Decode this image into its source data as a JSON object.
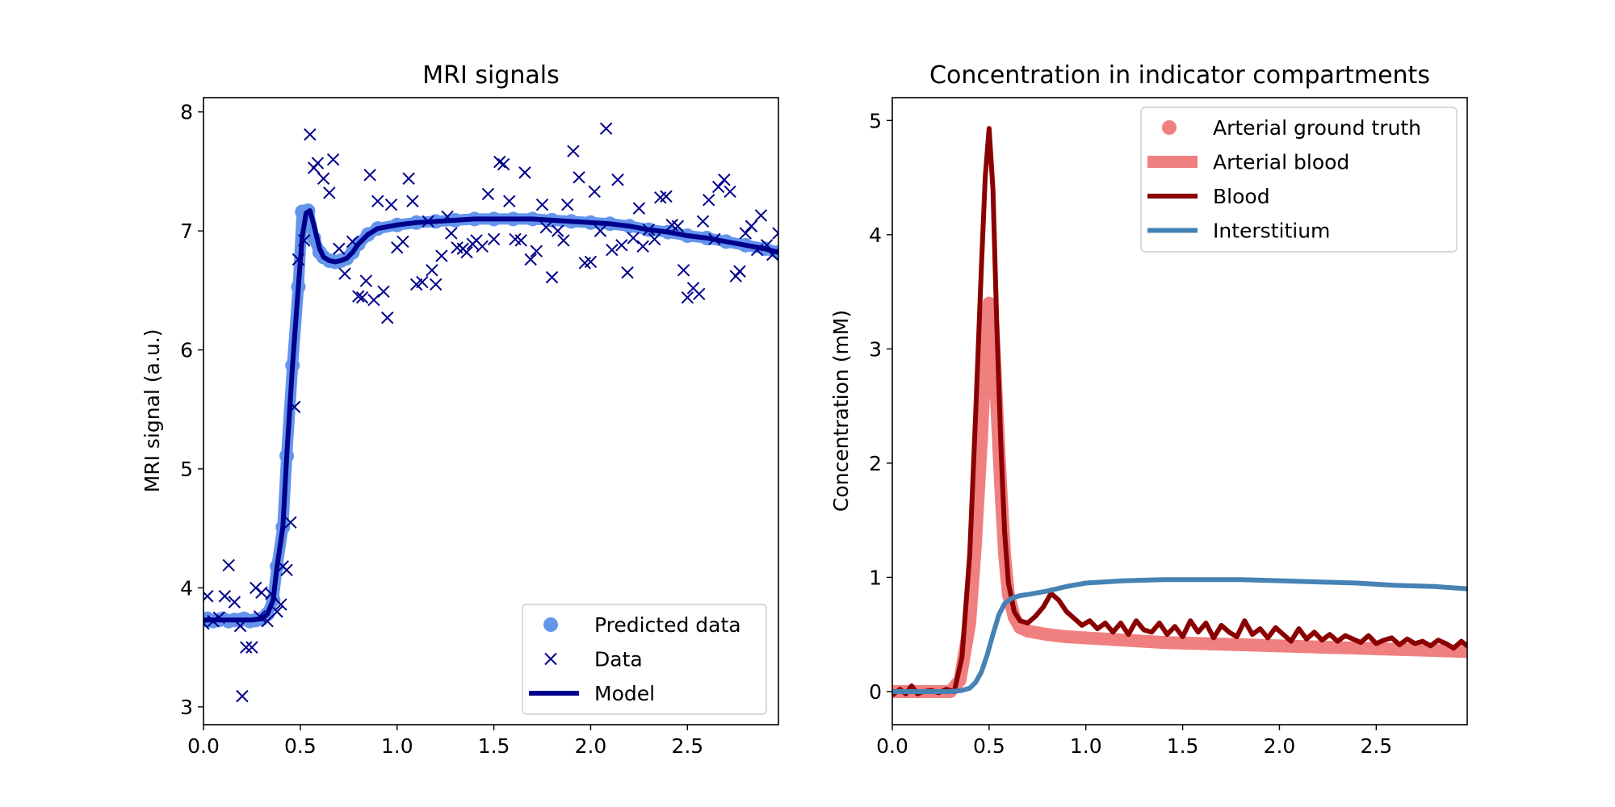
{
  "chart_data": [
    {
      "type": "line",
      "title": "MRI signals",
      "xlabel": "",
      "ylabel": "MRI signal (a.u.)",
      "xlim": [
        0,
        2.97
      ],
      "ylim": [
        2.85,
        8.12
      ],
      "xticks": [
        0.0,
        0.5,
        1.0,
        1.5,
        2.0,
        2.5
      ],
      "xtick_labels": [
        "0.0",
        "0.5",
        "1.0",
        "1.5",
        "2.0",
        "2.5"
      ],
      "yticks": [
        3,
        4,
        5,
        6,
        7,
        8
      ],
      "ytick_labels": [
        "3",
        "4",
        "5",
        "6",
        "7",
        "8"
      ],
      "legend_position": "lower-right",
      "colors": {
        "predicted": "#6495ed",
        "data": "#00008b",
        "model": "#00008b"
      },
      "series": [
        {
          "name": "Predicted data",
          "style": "markers",
          "x": [
            0.0,
            0.02,
            0.05,
            0.08,
            0.1,
            0.13,
            0.16,
            0.19,
            0.21,
            0.24,
            0.27,
            0.3,
            0.33,
            0.36,
            0.38,
            0.41,
            0.43,
            0.46,
            0.49,
            0.51,
            0.54,
            0.57,
            0.6,
            0.62,
            0.65,
            0.68,
            0.71,
            0.74,
            0.77,
            0.8,
            0.85,
            0.9,
            1.0,
            1.1,
            1.2,
            1.3,
            1.4,
            1.5,
            1.6,
            1.7,
            1.8,
            1.9,
            2.0,
            2.1,
            2.2,
            2.3,
            2.4,
            2.5,
            2.6,
            2.7,
            2.8,
            2.9,
            2.97
          ],
          "y": [
            3.73,
            3.74,
            3.72,
            3.73,
            3.74,
            3.72,
            3.73,
            3.73,
            3.74,
            3.72,
            3.73,
            3.74,
            3.78,
            3.9,
            4.18,
            4.51,
            5.11,
            5.87,
            6.53,
            7.16,
            7.17,
            6.94,
            6.82,
            6.78,
            6.75,
            6.74,
            6.75,
            6.77,
            6.82,
            6.89,
            6.97,
            7.02,
            7.05,
            7.07,
            7.08,
            7.09,
            7.1,
            7.1,
            7.1,
            7.1,
            7.09,
            7.08,
            7.07,
            7.06,
            7.04,
            7.01,
            6.99,
            6.96,
            6.94,
            6.91,
            6.88,
            6.85,
            6.82
          ]
        },
        {
          "name": "Data",
          "style": "x-markers",
          "x": [
            0.0,
            0.02,
            0.05,
            0.08,
            0.11,
            0.13,
            0.16,
            0.19,
            0.2,
            0.22,
            0.25,
            0.27,
            0.29,
            0.3,
            0.33,
            0.35,
            0.38,
            0.4,
            0.41,
            0.43,
            0.45,
            0.47,
            0.49,
            0.52,
            0.55,
            0.57,
            0.59,
            0.62,
            0.65,
            0.67,
            0.7,
            0.73,
            0.77,
            0.8,
            0.82,
            0.84,
            0.86,
            0.88,
            0.9,
            0.93,
            0.95,
            0.97,
            1.0,
            1.03,
            1.06,
            1.08,
            1.1,
            1.13,
            1.16,
            1.18,
            1.2,
            1.23,
            1.26,
            1.28,
            1.31,
            1.34,
            1.36,
            1.39,
            1.41,
            1.44,
            1.47,
            1.5,
            1.53,
            1.55,
            1.58,
            1.61,
            1.64,
            1.66,
            1.69,
            1.72,
            1.75,
            1.77,
            1.8,
            1.83,
            1.86,
            1.88,
            1.91,
            1.94,
            1.97,
            2.0,
            2.02,
            2.05,
            2.08,
            2.11,
            2.14,
            2.16,
            2.19,
            2.22,
            2.25,
            2.27,
            2.3,
            2.33,
            2.36,
            2.39,
            2.42,
            2.45,
            2.48,
            2.5,
            2.53,
            2.56,
            2.58,
            2.61,
            2.64,
            2.66,
            2.69,
            2.72,
            2.75,
            2.77,
            2.8,
            2.83,
            2.86,
            2.88,
            2.91,
            2.94,
            2.97
          ],
          "y": [
            3.7,
            3.93,
            3.72,
            3.75,
            3.93,
            4.19,
            3.88,
            3.68,
            3.09,
            3.5,
            3.5,
            4.0,
            3.76,
            3.96,
            3.72,
            3.95,
            3.8,
            3.86,
            4.18,
            4.15,
            4.55,
            5.52,
            6.76,
            6.92,
            7.81,
            7.53,
            7.57,
            7.44,
            7.32,
            7.6,
            6.85,
            6.64,
            6.91,
            6.45,
            6.44,
            6.58,
            7.47,
            6.42,
            7.25,
            6.49,
            6.27,
            7.22,
            6.86,
            6.91,
            7.44,
            7.25,
            6.55,
            6.57,
            7.08,
            6.67,
            6.55,
            6.79,
            7.12,
            6.98,
            6.86,
            6.85,
            6.82,
            6.89,
            6.92,
            6.87,
            7.31,
            6.93,
            7.58,
            7.56,
            7.25,
            6.93,
            6.92,
            7.49,
            6.76,
            6.83,
            7.22,
            7.03,
            6.61,
            7.0,
            6.92,
            7.22,
            7.67,
            7.45,
            6.73,
            6.74,
            7.33,
            7.0,
            7.86,
            6.84,
            7.43,
            6.88,
            6.65,
            6.94,
            7.19,
            6.87,
            7.01,
            6.93,
            7.28,
            7.29,
            7.05,
            7.04,
            6.67,
            6.44,
            6.52,
            6.47,
            7.08,
            7.26,
            6.93,
            7.37,
            7.43,
            7.33,
            6.62,
            6.66,
            6.98,
            7.04,
            6.84,
            7.13,
            6.88,
            6.8,
            6.98
          ]
        },
        {
          "name": "Model",
          "style": "line",
          "x": [
            0.0,
            0.05,
            0.1,
            0.15,
            0.2,
            0.25,
            0.3,
            0.33,
            0.36,
            0.38,
            0.41,
            0.43,
            0.46,
            0.49,
            0.51,
            0.53,
            0.55,
            0.57,
            0.6,
            0.62,
            0.65,
            0.68,
            0.71,
            0.74,
            0.77,
            0.8,
            0.85,
            0.9,
            1.0,
            1.1,
            1.2,
            1.3,
            1.4,
            1.5,
            1.6,
            1.7,
            1.8,
            1.9,
            2.0,
            2.1,
            2.2,
            2.3,
            2.4,
            2.5,
            2.6,
            2.7,
            2.8,
            2.9,
            2.97
          ],
          "y": [
            3.73,
            3.73,
            3.73,
            3.73,
            3.73,
            3.73,
            3.74,
            3.78,
            3.9,
            4.18,
            4.51,
            5.11,
            5.87,
            6.53,
            6.95,
            7.15,
            7.17,
            7.05,
            6.85,
            6.78,
            6.75,
            6.74,
            6.75,
            6.77,
            6.82,
            6.89,
            6.97,
            7.02,
            7.05,
            7.07,
            7.08,
            7.09,
            7.1,
            7.1,
            7.1,
            7.1,
            7.09,
            7.08,
            7.07,
            7.06,
            7.04,
            7.01,
            6.99,
            6.96,
            6.94,
            6.91,
            6.88,
            6.85,
            6.82
          ]
        }
      ]
    },
    {
      "type": "line",
      "title": "Concentration in indicator compartments",
      "xlabel": "",
      "ylabel": "Concentration (mM)",
      "xlim": [
        0,
        2.97
      ],
      "ylim": [
        -0.29,
        5.2
      ],
      "xticks": [
        0.0,
        0.5,
        1.0,
        1.5,
        2.0,
        2.5
      ],
      "xtick_labels": [
        "0.0",
        "0.5",
        "1.0",
        "1.5",
        "2.0",
        "2.5"
      ],
      "yticks": [
        0,
        1,
        2,
        3,
        4,
        5
      ],
      "ytick_labels": [
        "0",
        "1",
        "2",
        "3",
        "4",
        "5"
      ],
      "legend_position": "upper-right",
      "colors": {
        "arterial_truth": "#f08080",
        "arterial_blood": "#f08080",
        "blood": "#8b0000",
        "interstitium": "#4682b4"
      },
      "series": [
        {
          "name": "Arterial ground truth",
          "style": "markers",
          "x": [
            0.0,
            0.1,
            0.2,
            0.3,
            0.35,
            0.4,
            0.43,
            0.46,
            0.48,
            0.5,
            0.52,
            0.54,
            0.56,
            0.58,
            0.6,
            0.63,
            0.66,
            0.7,
            0.8,
            0.9,
            1.0,
            1.2,
            1.4,
            1.6,
            1.8,
            2.0,
            2.2,
            2.4,
            2.6,
            2.8,
            2.97
          ],
          "y": [
            0.0,
            0.0,
            0.0,
            0.0,
            0.1,
            0.6,
            1.3,
            2.2,
            2.9,
            3.4,
            3.2,
            2.5,
            1.8,
            1.2,
            0.85,
            0.65,
            0.56,
            0.53,
            0.5,
            0.48,
            0.47,
            0.45,
            0.43,
            0.42,
            0.41,
            0.4,
            0.39,
            0.38,
            0.37,
            0.36,
            0.35
          ]
        },
        {
          "name": "Arterial blood",
          "style": "thick-line",
          "x": [
            0.0,
            0.1,
            0.2,
            0.3,
            0.35,
            0.4,
            0.43,
            0.46,
            0.48,
            0.5,
            0.52,
            0.54,
            0.56,
            0.58,
            0.6,
            0.63,
            0.66,
            0.7,
            0.8,
            0.9,
            1.0,
            1.2,
            1.4,
            1.6,
            1.8,
            2.0,
            2.2,
            2.4,
            2.6,
            2.8,
            2.97
          ],
          "y": [
            0.0,
            0.0,
            0.0,
            0.0,
            0.1,
            0.6,
            1.3,
            2.2,
            2.9,
            3.4,
            3.2,
            2.5,
            1.8,
            1.2,
            0.85,
            0.65,
            0.56,
            0.53,
            0.5,
            0.48,
            0.47,
            0.45,
            0.43,
            0.42,
            0.41,
            0.4,
            0.39,
            0.38,
            0.37,
            0.36,
            0.35
          ]
        },
        {
          "name": "Blood",
          "style": "line",
          "x": [
            0.0,
            0.04,
            0.07,
            0.1,
            0.13,
            0.16,
            0.2,
            0.24,
            0.28,
            0.32,
            0.36,
            0.4,
            0.43,
            0.46,
            0.48,
            0.5,
            0.52,
            0.54,
            0.56,
            0.58,
            0.6,
            0.63,
            0.66,
            0.7,
            0.74,
            0.78,
            0.82,
            0.86,
            0.9,
            0.94,
            0.98,
            1.02,
            1.06,
            1.1,
            1.14,
            1.18,
            1.22,
            1.26,
            1.3,
            1.34,
            1.38,
            1.42,
            1.46,
            1.5,
            1.54,
            1.58,
            1.62,
            1.66,
            1.7,
            1.74,
            1.78,
            1.82,
            1.86,
            1.9,
            1.94,
            1.98,
            2.02,
            2.06,
            2.1,
            2.14,
            2.18,
            2.22,
            2.26,
            2.3,
            2.34,
            2.38,
            2.42,
            2.46,
            2.5,
            2.54,
            2.58,
            2.62,
            2.66,
            2.7,
            2.74,
            2.78,
            2.82,
            2.86,
            2.9,
            2.94,
            2.97
          ],
          "y": [
            -0.03,
            0.02,
            -0.02,
            0.05,
            -0.02,
            0.0,
            0.01,
            -0.01,
            0.02,
            0.0,
            0.3,
            1.2,
            2.4,
            3.7,
            4.5,
            4.93,
            4.4,
            3.2,
            2.2,
            1.4,
            0.95,
            0.7,
            0.62,
            0.6,
            0.66,
            0.74,
            0.86,
            0.8,
            0.7,
            0.64,
            0.58,
            0.62,
            0.55,
            0.6,
            0.52,
            0.6,
            0.5,
            0.62,
            0.54,
            0.52,
            0.6,
            0.5,
            0.57,
            0.48,
            0.62,
            0.52,
            0.6,
            0.47,
            0.58,
            0.52,
            0.48,
            0.62,
            0.5,
            0.55,
            0.47,
            0.56,
            0.5,
            0.44,
            0.55,
            0.46,
            0.52,
            0.45,
            0.5,
            0.44,
            0.49,
            0.46,
            0.43,
            0.49,
            0.42,
            0.45,
            0.47,
            0.41,
            0.46,
            0.42,
            0.44,
            0.4,
            0.45,
            0.42,
            0.38,
            0.44,
            0.4
          ]
        },
        {
          "name": "Interstitium",
          "style": "line",
          "x": [
            0.0,
            0.2,
            0.3,
            0.36,
            0.4,
            0.43,
            0.46,
            0.49,
            0.52,
            0.55,
            0.58,
            0.62,
            0.66,
            0.7,
            0.8,
            0.9,
            1.0,
            1.2,
            1.4,
            1.6,
            1.7,
            1.8,
            2.0,
            2.2,
            2.4,
            2.6,
            2.8,
            2.97
          ],
          "y": [
            0.0,
            0.0,
            0.0,
            0.01,
            0.03,
            0.08,
            0.17,
            0.32,
            0.5,
            0.67,
            0.77,
            0.82,
            0.84,
            0.85,
            0.88,
            0.92,
            0.95,
            0.97,
            0.98,
            0.98,
            0.98,
            0.98,
            0.97,
            0.96,
            0.95,
            0.93,
            0.92,
            0.9
          ]
        }
      ]
    }
  ]
}
